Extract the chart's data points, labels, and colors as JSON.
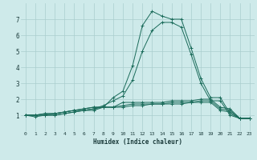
{
  "xlabel": "Humidex (Indice chaleur)",
  "background_color": "#ceeaea",
  "grid_color": "#aacece",
  "line_color": "#1a6b5a",
  "xlim": [
    -0.5,
    23.5
  ],
  "ylim": [
    0,
    8
  ],
  "xtick_labels": [
    "0",
    "1",
    "2",
    "3",
    "4",
    "5",
    "6",
    "7",
    "8",
    "9",
    "10",
    "11",
    "12",
    "13",
    "14",
    "15",
    "16",
    "17",
    "18",
    "19",
    "20",
    "21",
    "22",
    "23"
  ],
  "yticks": [
    1,
    2,
    3,
    4,
    5,
    6,
    7
  ],
  "lines": [
    [
      1.0,
      1.0,
      1.0,
      1.0,
      1.1,
      1.2,
      1.3,
      1.3,
      1.5,
      2.1,
      2.5,
      4.1,
      6.6,
      7.5,
      7.2,
      7.0,
      7.0,
      5.2,
      3.3,
      2.1,
      2.1,
      1.1,
      0.8,
      0.8
    ],
    [
      1.0,
      0.9,
      1.0,
      1.0,
      1.1,
      1.2,
      1.3,
      1.4,
      1.6,
      1.9,
      2.2,
      3.2,
      5.0,
      6.3,
      6.8,
      6.8,
      6.5,
      4.8,
      3.0,
      1.9,
      1.9,
      1.0,
      0.8,
      0.8
    ],
    [
      1.0,
      1.0,
      1.0,
      1.1,
      1.2,
      1.3,
      1.3,
      1.4,
      1.5,
      1.5,
      1.8,
      1.8,
      1.8,
      1.8,
      1.8,
      1.9,
      1.9,
      1.9,
      2.0,
      2.0,
      1.5,
      1.4,
      0.8,
      0.8
    ],
    [
      1.0,
      1.0,
      1.1,
      1.1,
      1.2,
      1.3,
      1.4,
      1.5,
      1.5,
      1.5,
      1.6,
      1.7,
      1.7,
      1.7,
      1.7,
      1.8,
      1.8,
      1.8,
      1.9,
      1.9,
      1.4,
      1.3,
      0.8,
      0.8
    ],
    [
      1.0,
      1.0,
      1.1,
      1.1,
      1.2,
      1.3,
      1.4,
      1.5,
      1.5,
      1.5,
      1.5,
      1.6,
      1.6,
      1.7,
      1.7,
      1.7,
      1.7,
      1.8,
      1.8,
      1.8,
      1.3,
      1.2,
      0.8,
      0.8
    ]
  ]
}
